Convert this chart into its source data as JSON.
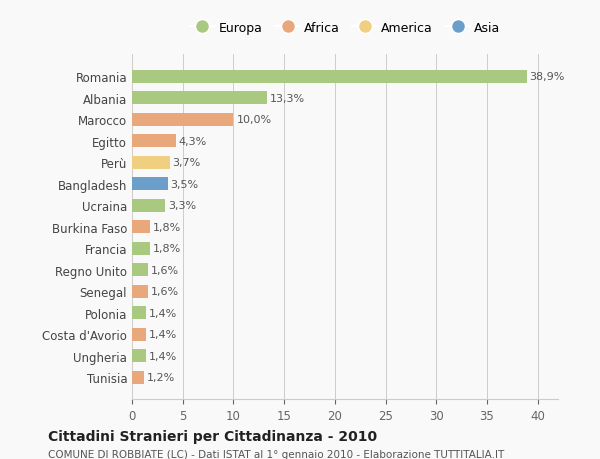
{
  "countries": [
    "Tunisia",
    "Ungheria",
    "Costa d'Avorio",
    "Polonia",
    "Senegal",
    "Regno Unito",
    "Francia",
    "Burkina Faso",
    "Ucraina",
    "Bangladesh",
    "Perù",
    "Egitto",
    "Marocco",
    "Albania",
    "Romania"
  ],
  "values": [
    1.2,
    1.4,
    1.4,
    1.4,
    1.6,
    1.6,
    1.8,
    1.8,
    3.3,
    3.5,
    3.7,
    4.3,
    10.0,
    13.3,
    38.9
  ],
  "continents": [
    "Africa",
    "Europa",
    "Africa",
    "Europa",
    "Africa",
    "Europa",
    "Europa",
    "Africa",
    "Europa",
    "Asia",
    "America",
    "Africa",
    "Africa",
    "Europa",
    "Europa"
  ],
  "labels": [
    "1,2%",
    "1,4%",
    "1,4%",
    "1,4%",
    "1,6%",
    "1,6%",
    "1,8%",
    "1,8%",
    "3,3%",
    "3,5%",
    "3,7%",
    "4,3%",
    "10,0%",
    "13,3%",
    "38,9%"
  ],
  "continent_colors": {
    "Europa": "#a8c97f",
    "Africa": "#e8a87c",
    "America": "#f0d080",
    "Asia": "#6b9ec8"
  },
  "legend_items": [
    "Europa",
    "Africa",
    "America",
    "Asia"
  ],
  "legend_colors": [
    "#a8c97f",
    "#e8a87c",
    "#f0d080",
    "#6b9ec8"
  ],
  "title": "Cittadini Stranieri per Cittadinanza - 2010",
  "subtitle": "COMUNE DI ROBBIATE (LC) - Dati ISTAT al 1° gennaio 2010 - Elaborazione TUTTITALIA.IT",
  "xlim": [
    0,
    42
  ],
  "xticks": [
    0,
    5,
    10,
    15,
    20,
    25,
    30,
    35,
    40
  ],
  "background_color": "#f9f9f9",
  "grid_color": "#cccccc"
}
